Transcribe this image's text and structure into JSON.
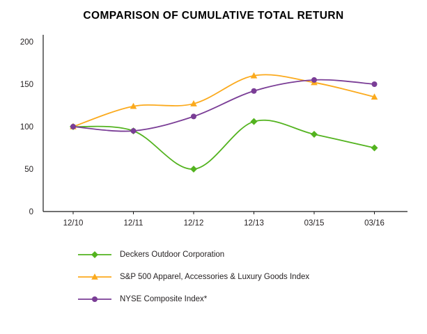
{
  "title": "COMPARISON OF CUMULATIVE TOTAL RETURN",
  "chart_data": {
    "type": "line",
    "title": "COMPARISON OF CUMULATIVE TOTAL RETURN",
    "xlabel": "",
    "ylabel": "",
    "categories": [
      "12/10",
      "12/11",
      "12/12",
      "12/13",
      "03/15",
      "03/16"
    ],
    "series": [
      {
        "name": "Deckers Outdoor Corporation",
        "marker": "diamond",
        "color": "#53b31f",
        "values": [
          100,
          95,
          50,
          106,
          91,
          75
        ]
      },
      {
        "name": "S&P 500 Apparel, Accessories & Luxury Goods Index",
        "marker": "triangle",
        "color": "#fbaa1d",
        "values": [
          100,
          124,
          127,
          160,
          152,
          135
        ]
      },
      {
        "name": "NYSE Composite Index*",
        "marker": "circle",
        "color": "#7a3d96",
        "values": [
          100,
          95,
          112,
          142,
          155,
          150
        ]
      }
    ],
    "ylim": [
      0,
      200
    ],
    "yticks": [
      0,
      50,
      100,
      150,
      200
    ],
    "grid": false,
    "legend_position": "bottom"
  }
}
